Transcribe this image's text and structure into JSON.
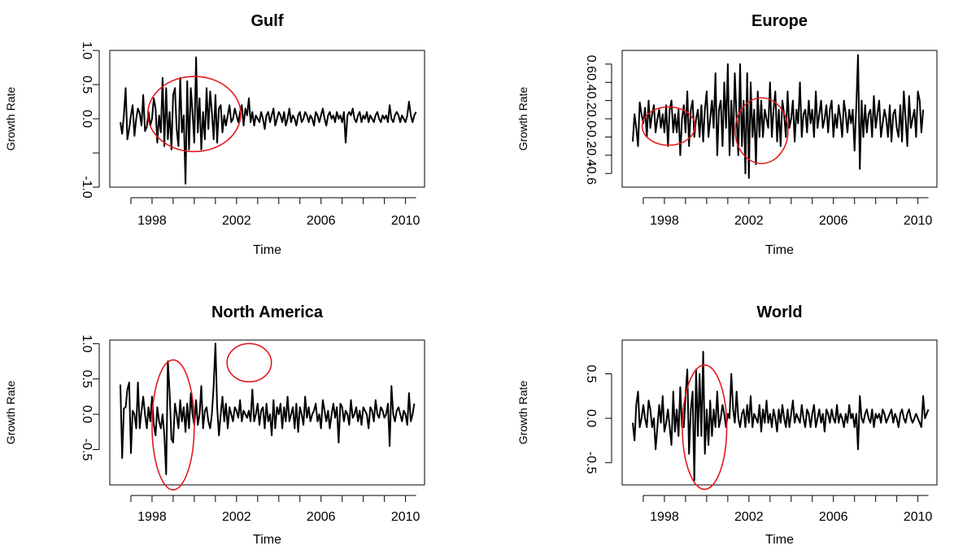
{
  "chart_data": [
    {
      "type": "line",
      "title": "Gulf",
      "xlabel": "Time",
      "ylabel": "Growth Rate",
      "xlim": [
        1996.0,
        2010.9
      ],
      "ylim": [
        -1.0,
        1.0
      ],
      "xticks": [
        1998,
        2002,
        2006,
        2010
      ],
      "xtick_labels": [
        "1998",
        "2002",
        "2006",
        "2010"
      ],
      "yticks": [
        -1.0,
        -0.5,
        0.0,
        0.5,
        1.0
      ],
      "ytick_labels": [
        "-1.0",
        "",
        "0.0",
        "0.5",
        "1.0"
      ],
      "grid": false,
      "color": "#000000",
      "highlight_color": "#e41a1c",
      "series": [
        {
          "x_start": 1996.5,
          "x_step": 0.08333,
          "values": [
            -0.05,
            -0.22,
            0.05,
            0.45,
            -0.3,
            -0.15,
            0.05,
            0.2,
            -0.25,
            0.0,
            0.15,
            0.08,
            -0.1,
            0.35,
            -0.18,
            -0.12,
            0.1,
            -0.1,
            0.0,
            0.3,
            0.15,
            -0.35,
            0.05,
            -0.2,
            0.6,
            -0.4,
            0.45,
            -0.3,
            0.1,
            -0.45,
            0.35,
            0.45,
            -0.15,
            -0.4,
            0.6,
            -0.2,
            0.05,
            -0.95,
            0.55,
            -0.45,
            0.45,
            0.1,
            -0.35,
            0.9,
            -0.2,
            0.3,
            -0.45,
            0.1,
            -0.3,
            0.45,
            -0.15,
            0.4,
            0.1,
            -0.3,
            0.35,
            -0.35,
            0.15,
            0.2,
            -0.2,
            0.05,
            -0.1,
            0.05,
            0.2,
            -0.05,
            0.0,
            0.15,
            0.05,
            -0.05,
            0.1,
            0.2,
            -0.1,
            0.15,
            0.05,
            0.3,
            -0.05,
            0.1,
            -0.1,
            0.05,
            0.0,
            -0.05,
            0.1,
            0.0,
            -0.15,
            0.05,
            0.1,
            -0.05,
            0.05,
            0.15,
            -0.1,
            0.0,
            0.1,
            0.05,
            -0.05,
            0.1,
            -0.1,
            0.0,
            0.15,
            -0.05,
            0.05,
            0.0,
            -0.1,
            0.05,
            0.1,
            -0.05,
            0.0,
            0.1,
            0.05,
            -0.05,
            0.05,
            0.0,
            -0.1,
            0.1,
            0.05,
            -0.05,
            0.05,
            0.15,
            0.0,
            -0.1,
            0.05,
            0.1,
            0.0,
            0.05,
            -0.05,
            0.1,
            0.0,
            0.05,
            -0.05,
            0.1,
            -0.35,
            0.05,
            0.1,
            0.05,
            0.15,
            0.0,
            -0.05,
            0.05,
            0.1,
            -0.05,
            0.05,
            0.0,
            0.1,
            -0.05,
            0.05,
            0.0,
            -0.05,
            0.05,
            0.1,
            0.0,
            -0.05,
            0.05,
            0.0,
            0.05,
            -0.05,
            0.2,
            0.0,
            -0.05,
            0.05,
            0.1,
            0.05,
            -0.05,
            0.05,
            0.0,
            -0.05,
            0.05,
            0.25,
            0.05,
            -0.05,
            0.05,
            0.1
          ]
        }
      ],
      "highlight_ellipses": [
        {
          "cx": 2000.0,
          "cy": 0.07,
          "rx": 2.2,
          "ry": 0.55
        }
      ]
    },
    {
      "type": "line",
      "title": "Europe",
      "xlabel": "Time",
      "ylabel": "Growth Rate",
      "xlim": [
        1996.0,
        2010.9
      ],
      "ylim": [
        -0.75,
        0.75
      ],
      "xticks": [
        1998,
        2002,
        2006,
        2010
      ],
      "xtick_labels": [
        "1998",
        "2002",
        "2006",
        "2010"
      ],
      "yticks": [
        -0.6,
        -0.4,
        -0.2,
        0.0,
        0.2,
        0.4,
        0.6
      ],
      "ytick_labels": [
        "-0.6",
        "-0.4",
        "-0.2",
        "0.0",
        "0.2",
        "0.4",
        "0.6"
      ],
      "grid": false,
      "color": "#000000",
      "highlight_color": "#e41a1c",
      "series": [
        {
          "x_start": 1996.5,
          "x_step": 0.08333,
          "values": [
            -0.25,
            0.05,
            -0.1,
            -0.3,
            0.18,
            0.05,
            -0.05,
            0.12,
            -0.2,
            0.2,
            -0.1,
            0.05,
            0.15,
            -0.15,
            0.0,
            0.1,
            -0.1,
            0.05,
            -0.15,
            0.15,
            -0.3,
            0.1,
            0.2,
            -0.15,
            0.05,
            -0.15,
            0.1,
            -0.4,
            0.0,
            0.15,
            -0.15,
            0.3,
            -0.3,
            0.1,
            0.2,
            -0.2,
            0.0,
            0.1,
            -0.2,
            0.15,
            -0.25,
            0.1,
            0.3,
            -0.2,
            0.0,
            0.2,
            -0.1,
            0.5,
            -0.4,
            0.1,
            0.2,
            -0.3,
            0.4,
            -0.1,
            0.6,
            -0.4,
            0.2,
            -0.3,
            0.5,
            0.0,
            -0.4,
            0.6,
            -0.3,
            0.2,
            -0.6,
            0.5,
            -0.65,
            0.4,
            -0.2,
            0.1,
            -0.5,
            0.3,
            -0.2,
            0.2,
            -0.2,
            0.1,
            0.0,
            -0.1,
            0.4,
            -0.2,
            0.1,
            0.3,
            -0.25,
            0.1,
            -0.3,
            0.2,
            0.05,
            -0.2,
            0.3,
            -0.1,
            0.0,
            0.2,
            -0.25,
            0.1,
            -0.05,
            0.4,
            -0.2,
            0.05,
            0.1,
            -0.15,
            0.2,
            -0.05,
            0.1,
            -0.2,
            0.3,
            -0.1,
            0.05,
            0.2,
            -0.1,
            0.0,
            0.15,
            -0.15,
            0.1,
            0.2,
            -0.2,
            0.05,
            -0.1,
            0.15,
            0.0,
            -0.2,
            0.2,
            0.05,
            -0.15,
            0.1,
            -0.05,
            0.1,
            -0.35,
            0.15,
            0.7,
            -0.55,
            0.2,
            -0.2,
            0.15,
            -0.15,
            0.05,
            0.1,
            -0.2,
            0.25,
            -0.1,
            0.05,
            0.2,
            -0.2,
            -0.05,
            0.1,
            0.0,
            -0.2,
            0.15,
            -0.25,
            0.05,
            0.1,
            -0.1,
            -0.2,
            0.15,
            -0.25,
            0.3,
            0.0,
            -0.3,
            0.25,
            -0.1,
            0.0,
            0.1,
            -0.2,
            0.3,
            0.2,
            -0.15,
            0.1
          ]
        }
      ],
      "highlight_ellipses": [
        {
          "cx": 1998.2,
          "cy": -0.08,
          "rx": 1.25,
          "ry": 0.21
        },
        {
          "cx": 2002.6,
          "cy": -0.13,
          "rx": 1.25,
          "ry": 0.36
        }
      ]
    },
    {
      "type": "line",
      "title": "North America",
      "xlabel": "Time",
      "ylabel": "Growth Rate",
      "xlim": [
        1996.0,
        2010.9
      ],
      "ylim": [
        -1.0,
        1.05
      ],
      "xticks": [
        1998,
        2002,
        2006,
        2010
      ],
      "xtick_labels": [
        "1998",
        "2002",
        "2006",
        "2010"
      ],
      "yticks": [
        -0.5,
        0.0,
        0.5,
        1.0
      ],
      "ytick_labels": [
        "-0.5",
        "0.0",
        "0.5",
        "1.0"
      ],
      "grid": false,
      "color": "#000000",
      "highlight_color": "#e41a1c",
      "series": [
        {
          "x_start": 1996.5,
          "x_step": 0.08333,
          "values": [
            0.42,
            -0.62,
            0.08,
            0.1,
            0.35,
            0.45,
            -0.55,
            0.05,
            0.0,
            -0.2,
            0.45,
            -0.2,
            0.05,
            0.25,
            0.0,
            -0.2,
            0.1,
            -0.1,
            0.25,
            -0.15,
            -0.3,
            0.1,
            -0.1,
            -0.2,
            0.0,
            -0.3,
            -0.85,
            0.75,
            0.3,
            -0.35,
            -0.4,
            0.15,
            0.0,
            -0.2,
            0.2,
            -0.1,
            0.1,
            -0.25,
            0.15,
            -0.2,
            0.3,
            0.0,
            -0.15,
            0.2,
            -0.15,
            0.0,
            0.4,
            -0.2,
            0.05,
            0.1,
            -0.1,
            -0.2,
            0.0,
            0.4,
            1.0,
            0.1,
            -0.3,
            0.0,
            0.25,
            -0.1,
            0.15,
            -0.2,
            0.1,
            0.0,
            -0.1,
            0.1,
            0.05,
            -0.05,
            0.2,
            -0.1,
            0.05,
            0.0,
            -0.05,
            0.05,
            -0.1,
            0.35,
            -0.1,
            0.0,
            0.15,
            -0.15,
            0.05,
            0.1,
            -0.2,
            0.15,
            -0.1,
            0.0,
            -0.3,
            0.2,
            -0.2,
            0.1,
            0.0,
            0.15,
            -0.2,
            0.1,
            -0.1,
            0.25,
            -0.1,
            0.0,
            0.1,
            -0.2,
            0.15,
            -0.25,
            0.1,
            0.0,
            -0.15,
            0.25,
            -0.05,
            0.1,
            -0.1,
            0.0,
            0.05,
            0.15,
            -0.1,
            0.0,
            -0.2,
            0.2,
            0.05,
            -0.1,
            0.05,
            -0.2,
            0.0,
            0.15,
            -0.05,
            0.1,
            -0.4,
            0.15,
            0.1,
            -0.1,
            0.05,
            0.0,
            -0.15,
            0.2,
            -0.05,
            0.0,
            0.1,
            -0.1,
            0.05,
            -0.15,
            0.1,
            0.05,
            0.0,
            -0.2,
            0.1,
            0.05,
            -0.1,
            0.2,
            0.0,
            -0.05,
            0.1,
            0.05,
            -0.05,
            0.0,
            0.15,
            -0.45,
            0.4,
            0.0,
            -0.1,
            0.05,
            0.1,
            0.0,
            -0.1,
            0.05,
            0.0,
            -0.15,
            0.3,
            -0.1,
            0.0,
            0.15
          ]
        }
      ],
      "highlight_ellipses": [
        {
          "cx": 1999.0,
          "cy": -0.15,
          "rx": 1.0,
          "ry": 0.92
        },
        {
          "cx": 2002.6,
          "cy": 0.73,
          "rx": 1.05,
          "ry": 0.27
        }
      ]
    },
    {
      "type": "line",
      "title": "World",
      "xlabel": "Time",
      "ylabel": "Growth Rate",
      "xlim": [
        1996.0,
        2010.9
      ],
      "ylim": [
        -0.75,
        0.88
      ],
      "xticks": [
        1998,
        2002,
        2006,
        2010
      ],
      "xtick_labels": [
        "1998",
        "2002",
        "2006",
        "2010"
      ],
      "yticks": [
        -0.5,
        0.0,
        0.5
      ],
      "ytick_labels": [
        "-0.5",
        "0.0",
        "0.5"
      ],
      "grid": false,
      "color": "#000000",
      "highlight_color": "#e41a1c",
      "series": [
        {
          "x_start": 1996.5,
          "x_step": 0.08333,
          "values": [
            -0.05,
            -0.25,
            0.15,
            0.3,
            -0.1,
            0.0,
            0.15,
            0.0,
            -0.1,
            0.2,
            0.1,
            -0.1,
            0.0,
            -0.35,
            -0.1,
            0.15,
            -0.05,
            0.25,
            -0.15,
            -0.05,
            0.1,
            -0.1,
            -0.3,
            0.3,
            -0.15,
            0.1,
            -0.2,
            0.35,
            -0.1,
            -0.1,
            0.25,
            0.55,
            -0.4,
            0.1,
            0.3,
            -0.7,
            0.55,
            -0.2,
            0.5,
            -0.2,
            0.75,
            -0.4,
            0.1,
            -0.3,
            0.2,
            -0.2,
            0.1,
            -0.1,
            0.3,
            -0.1,
            0.0,
            0.15,
            0.05,
            -0.1,
            0.05,
            0.0,
            0.5,
            0.1,
            -0.05,
            0.3,
            0.0,
            -0.1,
            0.05,
            0.1,
            -0.1,
            0.15,
            -0.05,
            0.25,
            -0.1,
            0.05,
            0.0,
            -0.05,
            0.15,
            -0.15,
            0.1,
            -0.05,
            0.2,
            -0.05,
            0.05,
            -0.1,
            0.1,
            0.0,
            -0.15,
            0.1,
            -0.05,
            0.15,
            0.0,
            -0.1,
            0.1,
            -0.1,
            0.05,
            0.2,
            -0.05,
            0.05,
            0.0,
            -0.05,
            0.15,
            0.0,
            -0.1,
            0.1,
            0.05,
            -0.1,
            0.05,
            0.15,
            -0.1,
            0.0,
            0.1,
            -0.05,
            0.05,
            -0.15,
            0.1,
            0.05,
            -0.05,
            0.1,
            0.0,
            -0.05,
            0.15,
            -0.05,
            0.05,
            0.0,
            -0.1,
            0.05,
            -0.05,
            0.15,
            0.0,
            0.05,
            -0.1,
            0.05,
            -0.35,
            0.25,
            0.0,
            -0.05,
            0.05,
            0.1,
            0.0,
            -0.05,
            0.1,
            -0.1,
            0.05,
            0.0,
            0.05,
            -0.05,
            0.1,
            0.05,
            -0.05,
            0.0,
            0.05,
            0.1,
            -0.05,
            0.05,
            0.0,
            -0.1,
            0.05,
            0.1,
            0.0,
            -0.05,
            0.05,
            0.1,
            0.0,
            -0.05,
            0.0,
            0.05,
            0.0,
            -0.05,
            -0.1,
            0.25,
            0.0,
            0.05,
            0.1
          ]
        }
      ],
      "highlight_ellipses": [
        {
          "cx": 1999.9,
          "cy": -0.1,
          "rx": 1.05,
          "ry": 0.7
        }
      ]
    }
  ]
}
